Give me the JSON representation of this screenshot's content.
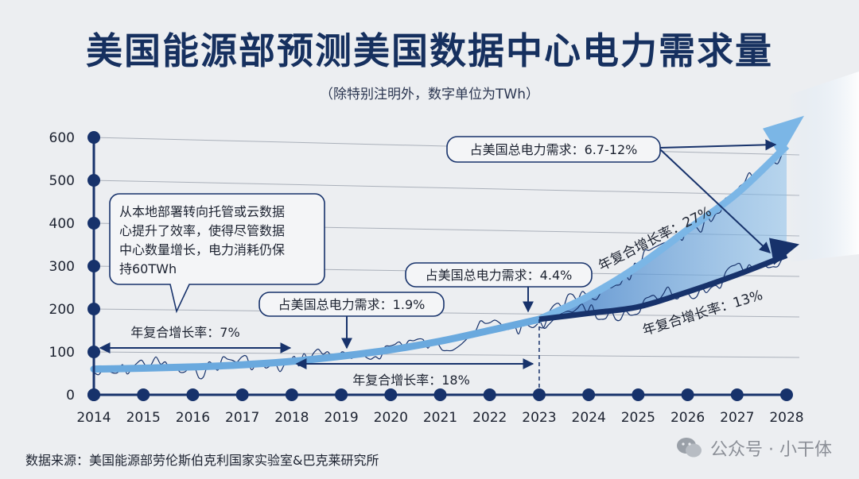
{
  "title": "美国能源部预测美国数据中心电力需求量",
  "subtitle": "（除特别注明外，数字单位为TWh）",
  "source": "数据来源：美国能源部劳伦斯伯克利国家实验室&巴克莱研究所",
  "watermark": "公众号 · 小干体",
  "colors": {
    "navy": "#17326b",
    "light_blue": "#6aa9de",
    "grid": "#aab0ba",
    "background": "#eceef1"
  },
  "chart_data": {
    "type": "line",
    "xlim": [
      2014,
      2028
    ],
    "ylim": [
      0,
      600
    ],
    "x_ticks": [
      "2014",
      "2015",
      "2016",
      "2017",
      "2018",
      "2019",
      "2020",
      "2021",
      "2022",
      "2023",
      "2024",
      "2025",
      "2026",
      "2027",
      "2028"
    ],
    "y_ticks": [
      "0",
      "100",
      "200",
      "300",
      "400",
      "500",
      "600"
    ],
    "grid": true,
    "series": [
      {
        "values": [
          [
            2014,
            60
          ],
          [
            2015,
            62
          ],
          [
            2016,
            65
          ],
          [
            2017,
            70
          ],
          [
            2018,
            78
          ],
          [
            2019,
            90
          ],
          [
            2020,
            105
          ],
          [
            2021,
            125
          ],
          [
            2022,
            150
          ],
          [
            2023,
            176
          ]
        ]
      },
      {
        "values": [
          [
            2023,
            176
          ],
          [
            2024,
            230
          ],
          [
            2025,
            300
          ],
          [
            2026,
            385
          ],
          [
            2027,
            470
          ],
          [
            2028,
            580
          ]
        ]
      },
      {
        "values": [
          [
            2023,
            176
          ],
          [
            2024,
            190
          ],
          [
            2025,
            205
          ],
          [
            2026,
            240
          ],
          [
            2027,
            280
          ],
          [
            2028,
            325
          ]
        ]
      }
    ],
    "annotations": {
      "box_2014_2018": "从本地部署转向托管或云数据心提升了效率，使得尽管数据中心数量增长，电力消耗仍保持60TWh",
      "cagr_7": "年复合增长率：7%",
      "share_2019": "占美国总电力需求：1.9%",
      "cagr_18": "年复合增长率：18%",
      "share_2023": "占美国总电力需求：4.4%",
      "share_2028": "占美国总电力需求：6.7-12%",
      "cagr_27": "年复合增长率：27%",
      "cagr_13": "年复合增长率：13%"
    }
  }
}
